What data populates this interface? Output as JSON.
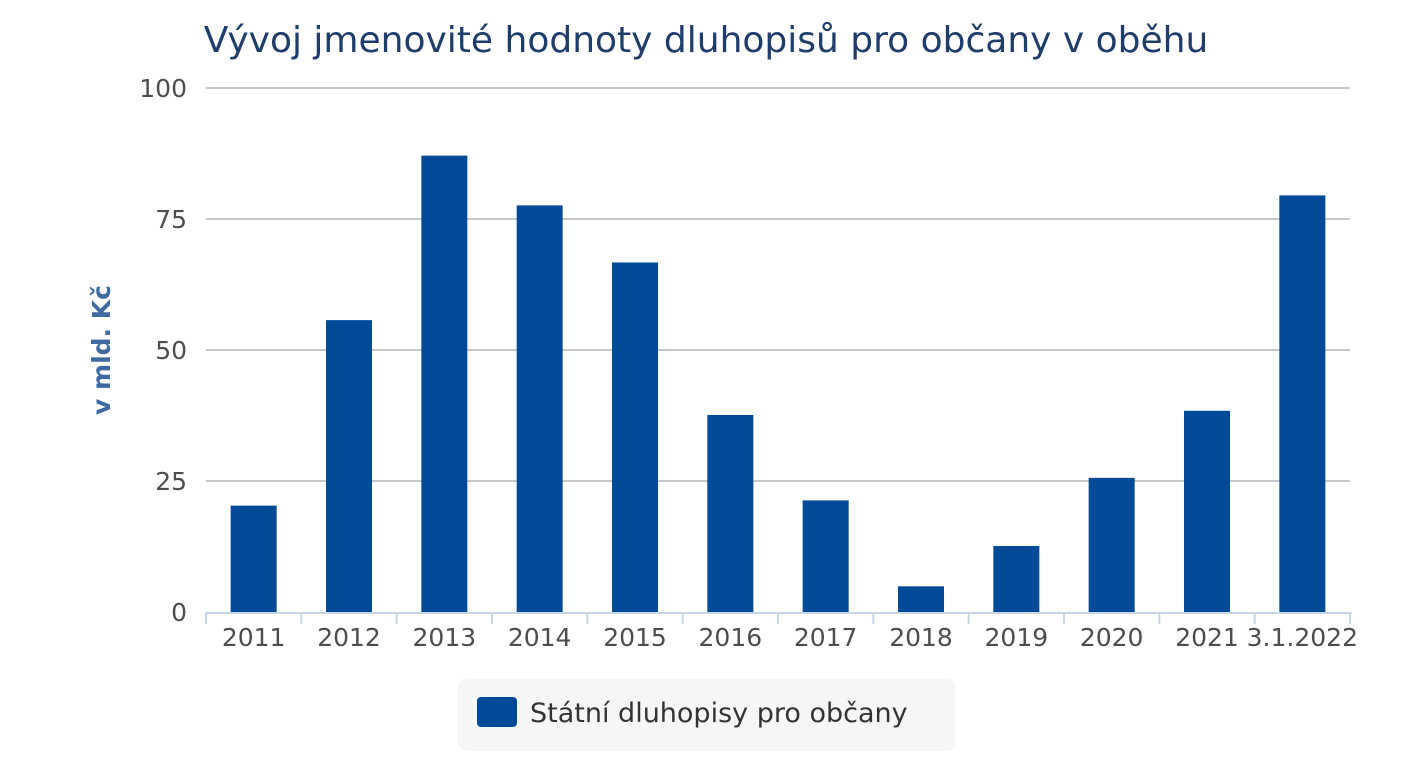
{
  "chart_data": {
    "type": "bar",
    "title": "Vývoj jmenovité hodnoty dluhopisů pro občany v oběhu",
    "xlabel": "",
    "ylabel": "v mld. Kč",
    "categories": [
      "2011",
      "2012",
      "2013",
      "2014",
      "2015",
      "2016",
      "2017",
      "2018",
      "2019",
      "2020",
      "2021",
      "3.1.2022"
    ],
    "series": [
      {
        "name": "Státní dluhopisy pro občany",
        "color": "#004a98",
        "values": [
          20.3,
          55.7,
          87.1,
          77.6,
          66.7,
          37.6,
          21.3,
          4.9,
          12.6,
          25.6,
          38.4,
          79.5
        ]
      }
    ],
    "ylim": [
      0,
      100
    ],
    "yticks": [
      0,
      25,
      50,
      75,
      100
    ],
    "grid": true,
    "legend_position": "bottom-center"
  }
}
